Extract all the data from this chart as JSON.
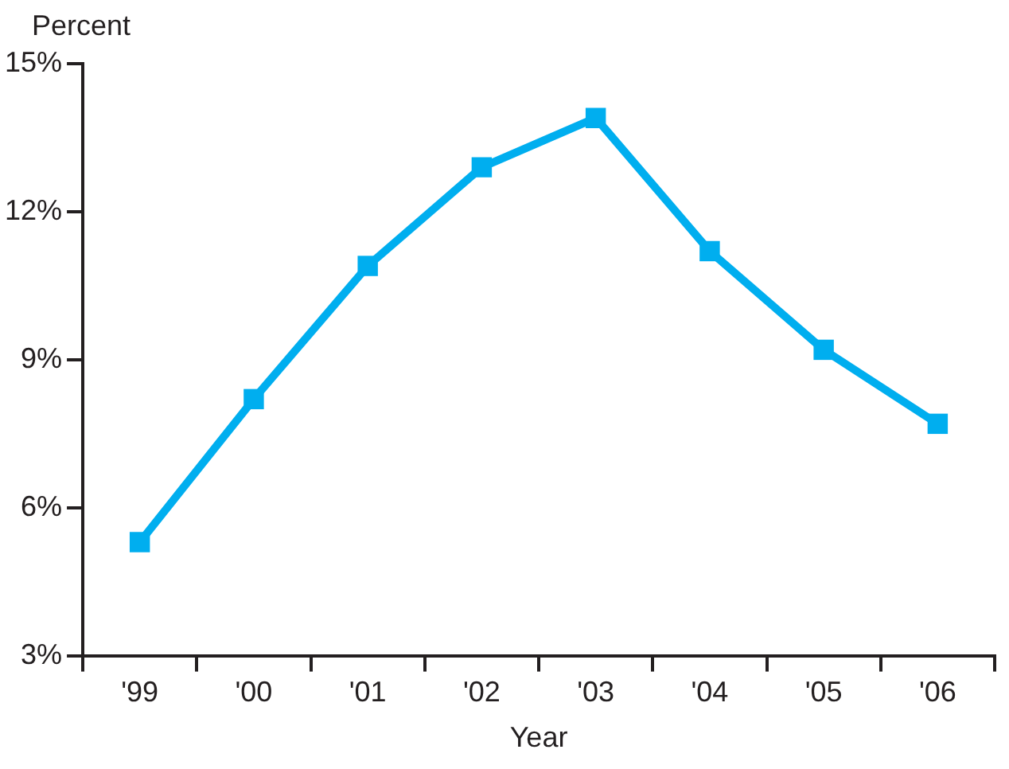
{
  "chart_data": {
    "type": "line",
    "ylabel": "Percent",
    "xlabel": "Year",
    "categories": [
      "'99",
      "'00",
      "'01",
      "'02",
      "'03",
      "'04",
      "'05",
      "'06"
    ],
    "series": [
      {
        "color": "#00aeef",
        "values": [
          5.3,
          8.2,
          10.9,
          12.9,
          13.9,
          11.2,
          9.2,
          7.7
        ]
      }
    ],
    "ylim": [
      3,
      15
    ],
    "yticks": [
      {
        "value": 3,
        "label": "3%"
      },
      {
        "value": 6,
        "label": "6%"
      },
      {
        "value": 9,
        "label": "9%"
      },
      {
        "value": 12,
        "label": "12%"
      },
      {
        "value": 15,
        "label": "15%"
      }
    ],
    "marker": "square",
    "line_style": "solid",
    "grid": false,
    "legend": false
  }
}
